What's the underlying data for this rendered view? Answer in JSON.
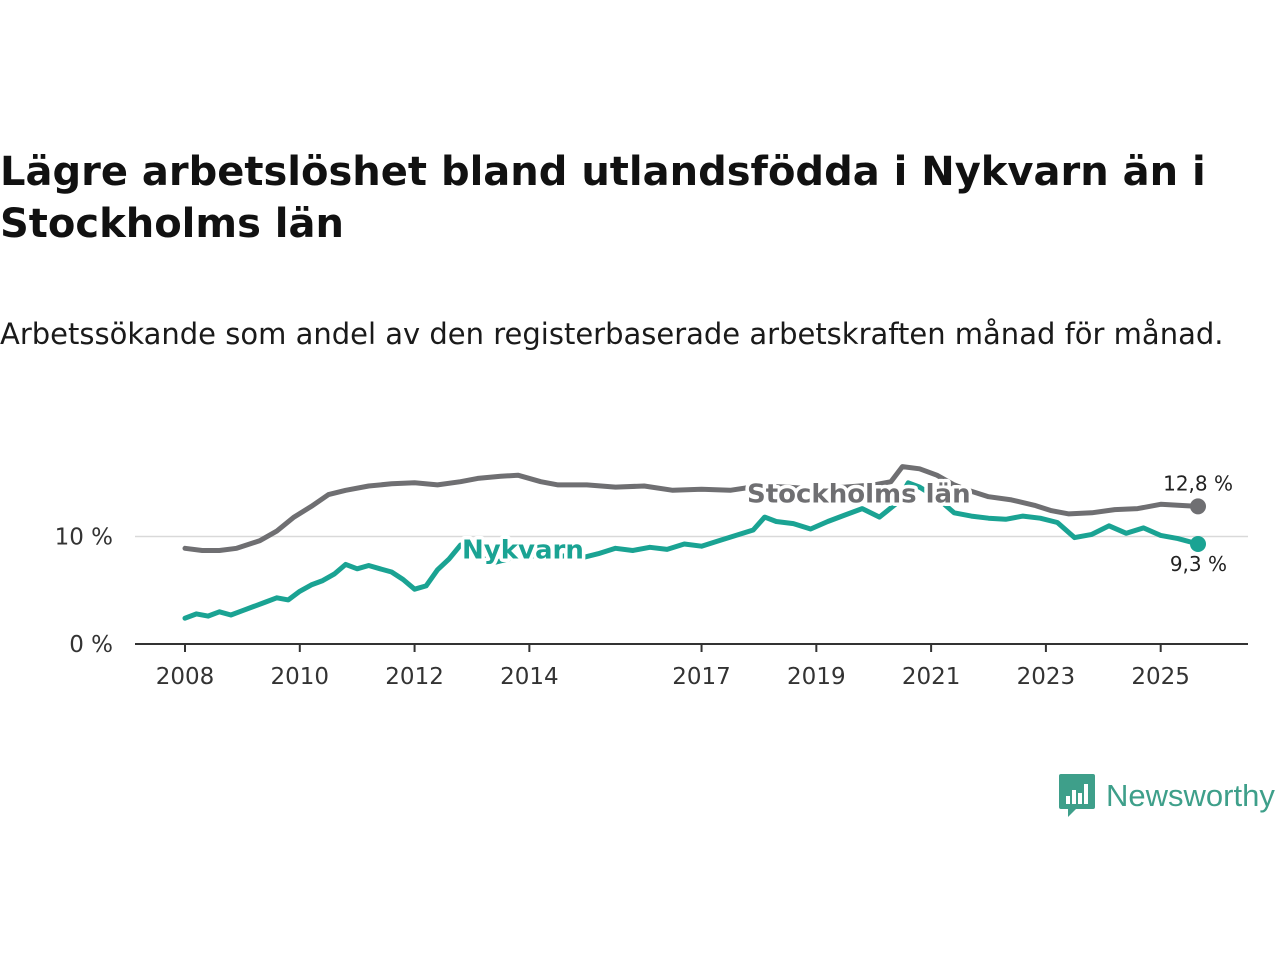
{
  "title": "Lägre arbetslöshet bland utlandsfödda i Nykvarn än i Stockholms län",
  "subtitle": "Arbetssökande som andel av den registerbaserade arbetskraften månad för månad.",
  "brand": {
    "name": "Newsworthy",
    "color": "#3e9f8a",
    "icon": "chart-bubble-icon"
  },
  "chart_data": {
    "type": "line",
    "x_range": [
      2008,
      2025.65
    ],
    "ylim": [
      0,
      16
    ],
    "y_ticks": [
      0,
      10
    ],
    "y_tick_labels": [
      "0 %",
      "10 %"
    ],
    "x_ticks": [
      2008,
      2010,
      2012,
      2014,
      2017,
      2019,
      2021,
      2023,
      2025
    ],
    "x_tick_labels": [
      "2008",
      "2010",
      "2012",
      "2014",
      "2017",
      "2019",
      "2021",
      "2023",
      "2025"
    ],
    "series": [
      {
        "name": "Stockholms län",
        "color": "#6f6f72",
        "end_label": "12,8 %",
        "points": [
          [
            2008,
            8.9
          ],
          [
            2008.3,
            8.7
          ],
          [
            2008.6,
            8.7
          ],
          [
            2008.9,
            8.9
          ],
          [
            2009.3,
            9.6
          ],
          [
            2009.6,
            10.5
          ],
          [
            2009.9,
            11.8
          ],
          [
            2010.2,
            12.8
          ],
          [
            2010.5,
            13.9
          ],
          [
            2010.8,
            14.3
          ],
          [
            2011.2,
            14.7
          ],
          [
            2011.6,
            14.9
          ],
          [
            2012,
            15.0
          ],
          [
            2012.4,
            14.8
          ],
          [
            2012.8,
            15.1
          ],
          [
            2013.1,
            15.4
          ],
          [
            2013.5,
            15.6
          ],
          [
            2013.8,
            15.7
          ],
          [
            2014.2,
            15.1
          ],
          [
            2014.5,
            14.8
          ],
          [
            2015,
            14.8
          ],
          [
            2015.5,
            14.6
          ],
          [
            2016,
            14.7
          ],
          [
            2016.5,
            14.3
          ],
          [
            2017,
            14.4
          ],
          [
            2017.5,
            14.3
          ],
          [
            2018,
            14.7
          ],
          [
            2018.5,
            14.6
          ],
          [
            2019,
            14.4
          ],
          [
            2019.5,
            14.6
          ],
          [
            2020,
            14.8
          ],
          [
            2020.3,
            15.1
          ],
          [
            2020.5,
            16.5
          ],
          [
            2020.8,
            16.3
          ],
          [
            2021.1,
            15.7
          ],
          [
            2021.4,
            14.8
          ],
          [
            2021.7,
            14.2
          ],
          [
            2022,
            13.7
          ],
          [
            2022.4,
            13.4
          ],
          [
            2022.8,
            12.9
          ],
          [
            2023.1,
            12.4
          ],
          [
            2023.4,
            12.1
          ],
          [
            2023.8,
            12.2
          ],
          [
            2024.2,
            12.5
          ],
          [
            2024.6,
            12.6
          ],
          [
            2025,
            13.0
          ],
          [
            2025.3,
            12.9
          ],
          [
            2025.65,
            12.8
          ]
        ]
      },
      {
        "name": "Nykvarn",
        "color": "#1aa393",
        "end_label": "9,3 %",
        "points": [
          [
            2008,
            2.4
          ],
          [
            2008.2,
            2.8
          ],
          [
            2008.4,
            2.6
          ],
          [
            2008.6,
            3.0
          ],
          [
            2008.8,
            2.7
          ],
          [
            2009,
            3.1
          ],
          [
            2009.2,
            3.5
          ],
          [
            2009.4,
            3.9
          ],
          [
            2009.6,
            4.3
          ],
          [
            2009.8,
            4.1
          ],
          [
            2010,
            4.9
          ],
          [
            2010.2,
            5.5
          ],
          [
            2010.4,
            5.9
          ],
          [
            2010.6,
            6.5
          ],
          [
            2010.8,
            7.4
          ],
          [
            2011,
            7.0
          ],
          [
            2011.2,
            7.3
          ],
          [
            2011.4,
            7.0
          ],
          [
            2011.6,
            6.7
          ],
          [
            2011.8,
            6.0
          ],
          [
            2012,
            5.1
          ],
          [
            2012.2,
            5.4
          ],
          [
            2012.4,
            6.9
          ],
          [
            2012.6,
            7.9
          ],
          [
            2012.8,
            9.2
          ],
          [
            2013.1,
            8.1
          ],
          [
            2013.4,
            7.6
          ],
          [
            2013.7,
            8.0
          ],
          [
            2014,
            8.3
          ],
          [
            2014.3,
            7.9
          ],
          [
            2014.6,
            8.2
          ],
          [
            2014.9,
            8.0
          ],
          [
            2015.2,
            8.4
          ],
          [
            2015.5,
            8.9
          ],
          [
            2015.8,
            8.7
          ],
          [
            2016.1,
            9.0
          ],
          [
            2016.4,
            8.8
          ],
          [
            2016.7,
            9.3
          ],
          [
            2017,
            9.1
          ],
          [
            2017.3,
            9.6
          ],
          [
            2017.6,
            10.1
          ],
          [
            2017.9,
            10.6
          ],
          [
            2018.1,
            11.8
          ],
          [
            2018.3,
            11.4
          ],
          [
            2018.6,
            11.2
          ],
          [
            2018.9,
            10.7
          ],
          [
            2019.2,
            11.4
          ],
          [
            2019.5,
            12.0
          ],
          [
            2019.8,
            12.6
          ],
          [
            2020.1,
            11.8
          ],
          [
            2020.4,
            13.1
          ],
          [
            2020.6,
            15.0
          ],
          [
            2020.8,
            14.6
          ],
          [
            2021.1,
            13.6
          ],
          [
            2021.4,
            12.2
          ],
          [
            2021.7,
            11.9
          ],
          [
            2022,
            11.7
          ],
          [
            2022.3,
            11.6
          ],
          [
            2022.6,
            11.9
          ],
          [
            2022.9,
            11.7
          ],
          [
            2023.2,
            11.3
          ],
          [
            2023.5,
            9.9
          ],
          [
            2023.8,
            10.2
          ],
          [
            2024.1,
            11.0
          ],
          [
            2024.4,
            10.3
          ],
          [
            2024.7,
            10.8
          ],
          [
            2025,
            10.1
          ],
          [
            2025.3,
            9.8
          ],
          [
            2025.65,
            9.3
          ]
        ]
      }
    ]
  }
}
